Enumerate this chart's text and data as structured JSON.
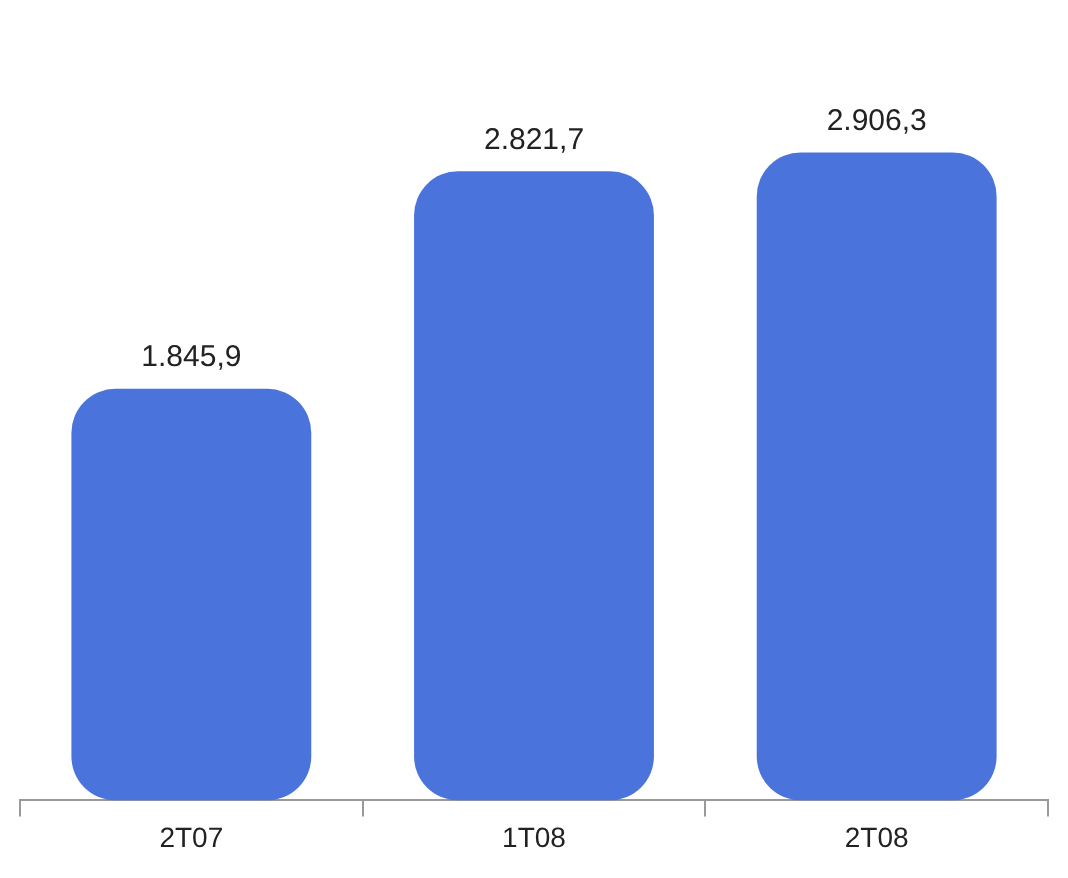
{
  "chart_data": {
    "type": "bar",
    "categories": [
      "2T07",
      "1T08",
      "2T08"
    ],
    "values": [
      1845.9,
      2821.7,
      2906.3
    ],
    "value_labels": [
      "1.845,9",
      "2.821,7",
      "2.906,3"
    ],
    "color": "#4a74dc",
    "grid": false,
    "legend": false
  }
}
